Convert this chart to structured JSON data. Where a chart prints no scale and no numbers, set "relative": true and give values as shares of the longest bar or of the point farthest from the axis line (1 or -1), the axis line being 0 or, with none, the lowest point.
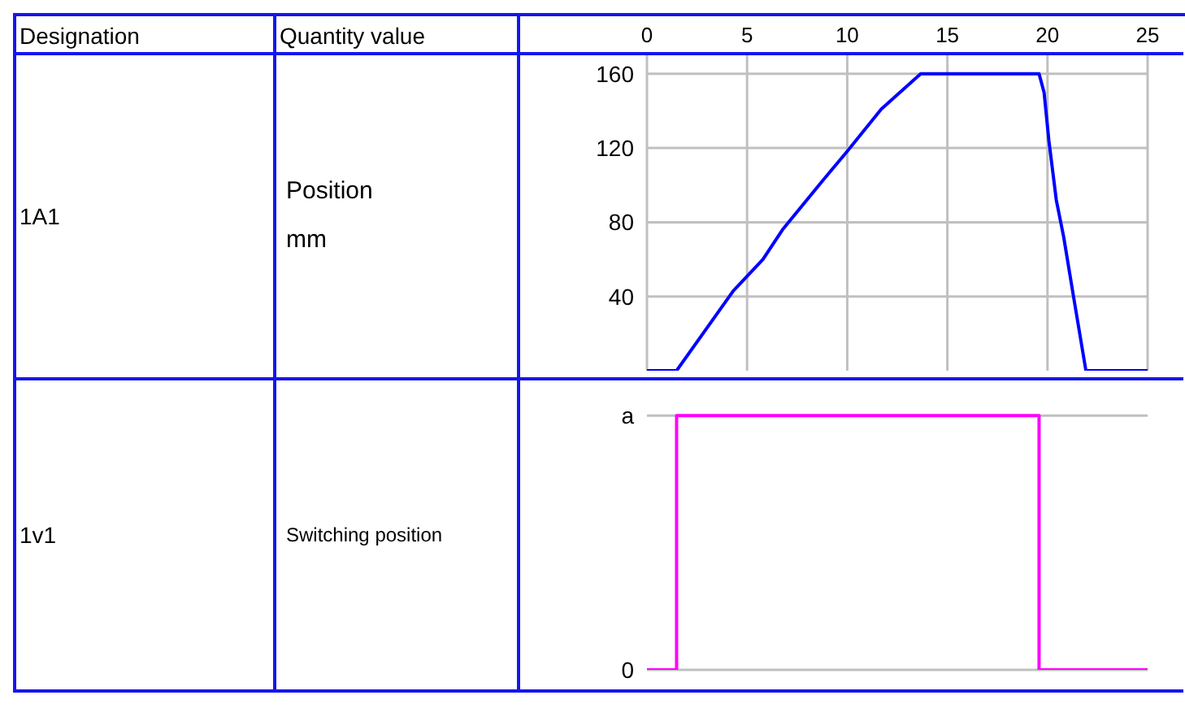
{
  "chart_data": [
    {
      "type": "line",
      "ylabel": "Position",
      "annotations": [
        "Designation",
        "Quantity value",
        "1A1",
        "mm"
      ],
      "xlim": [
        0,
        25
      ],
      "xticks": [
        0,
        5,
        10,
        15,
        20,
        25
      ],
      "ylim": [
        0,
        170
      ],
      "yticks": [
        40,
        80,
        120,
        160
      ],
      "grid": true,
      "marker": "none",
      "line_style": "solid",
      "x": [
        0,
        1.48,
        4.31,
        5.79,
        6.77,
        8.74,
        9.98,
        11.7,
        13.67,
        19.58,
        19.83,
        20.07,
        20.44,
        20.81,
        21.3,
        21.92,
        25
      ],
      "series": [
        {
          "color": "#0000ff",
          "values": [
            0,
            0,
            43,
            60,
            76,
            102,
            118,
            141,
            160,
            160,
            150,
            124,
            92,
            72,
            40,
            0,
            0
          ]
        }
      ]
    },
    {
      "type": "step",
      "ylabel": "Switching position",
      "relative": true,
      "annotations": [
        "1v1",
        "a",
        "0"
      ],
      "xlim": [
        0,
        25
      ],
      "xticks": [
        0,
        5,
        10,
        15,
        20,
        25
      ],
      "tick_labels": false,
      "grid": true,
      "marker": "none",
      "line_style": "solid",
      "x": [
        0,
        1.48,
        19.58,
        25
      ],
      "series": [
        {
          "color": "#ff00ff",
          "values": [
            0,
            1,
            0,
            0
          ]
        }
      ]
    }
  ]
}
